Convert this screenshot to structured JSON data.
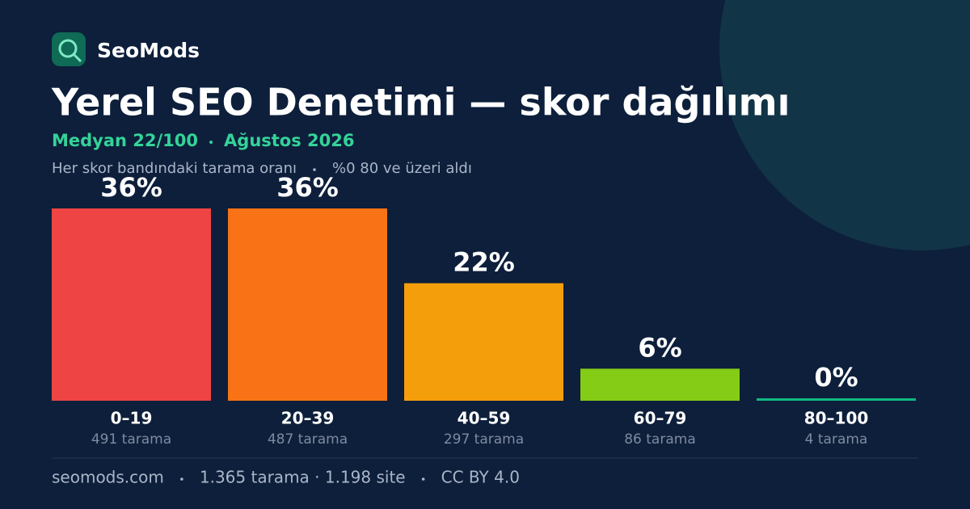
{
  "brand": "SeoMods",
  "chart_data": {
    "type": "bar",
    "title": "Yerel SEO Denetimi — skor dağılımı",
    "subtitle": [
      "Medyan 22/100",
      "Ağustos 2026"
    ],
    "description": [
      "Her skor bandındaki tarama oranı",
      "%0 80 ve üzeri aldı"
    ],
    "categories": [
      "0–19",
      "20–39",
      "40–59",
      "60–79",
      "80–100"
    ],
    "values": [
      36,
      36,
      22,
      6,
      0
    ],
    "value_labels": [
      "36%",
      "36%",
      "22%",
      "6%",
      "0%"
    ],
    "sublabels": [
      "491 tarama",
      "487 tarama",
      "297 tarama",
      "86 tarama",
      "4 tarama"
    ],
    "colors": [
      "#ef4444",
      "#f97316",
      "#f59e0b",
      "#84cc16",
      "#10b981"
    ]
  },
  "footer": [
    "seomods.com",
    "1.365 tarama · 1.198 site",
    "CC BY 4.0"
  ]
}
